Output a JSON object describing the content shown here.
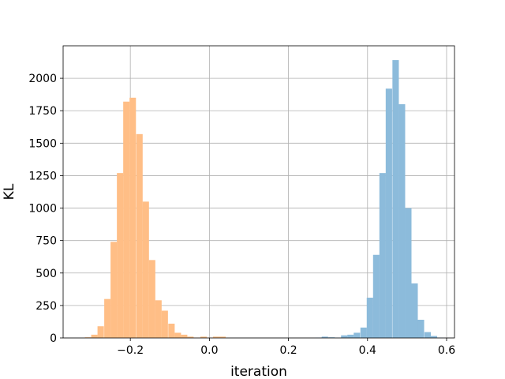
{
  "chart_data": {
    "type": "bar",
    "title": "",
    "xlabel": "iteration",
    "ylabel": "KL",
    "xlim": [
      -0.37,
      0.62
    ],
    "ylim": [
      0,
      2250
    ],
    "xticks": [
      -0.2,
      0.0,
      0.2,
      0.4,
      0.6
    ],
    "xtick_labels": [
      "−0.2",
      "0.0",
      "0.2",
      "0.4",
      "0.6"
    ],
    "yticks": [
      0,
      250,
      500,
      750,
      1000,
      1250,
      1500,
      1750,
      2000
    ],
    "ytick_labels": [
      "0",
      "250",
      "500",
      "750",
      "1000",
      "1250",
      "1500",
      "1750",
      "2000"
    ],
    "grid": true,
    "legend": "none",
    "bin_width": 0.0162,
    "series": [
      {
        "color": "#ffbe86",
        "bin_starts": [
          -0.315,
          -0.299,
          -0.283,
          -0.266,
          -0.25,
          -0.234,
          -0.218,
          -0.202,
          -0.185,
          -0.169,
          -0.153,
          -0.137,
          -0.121,
          -0.104,
          -0.088,
          -0.072,
          -0.056,
          -0.04,
          -0.023,
          -0.007,
          0.009,
          0.025
        ],
        "values": [
          5,
          25,
          90,
          300,
          740,
          1270,
          1820,
          1850,
          1570,
          1050,
          600,
          290,
          210,
          110,
          40,
          25,
          10,
          3,
          10,
          3,
          10,
          10
        ]
      },
      {
        "color": "#8cbbdb",
        "bin_starts": [
          0.268,
          0.284,
          0.301,
          0.317,
          0.333,
          0.349,
          0.365,
          0.382,
          0.398,
          0.414,
          0.43,
          0.446,
          0.463,
          0.479,
          0.495,
          0.511,
          0.527,
          0.544,
          0.56,
          0.576
        ],
        "values": [
          3,
          10,
          5,
          3,
          20,
          25,
          40,
          80,
          310,
          640,
          1270,
          1920,
          2140,
          1800,
          1000,
          420,
          140,
          45,
          15,
          3
        ]
      }
    ]
  }
}
